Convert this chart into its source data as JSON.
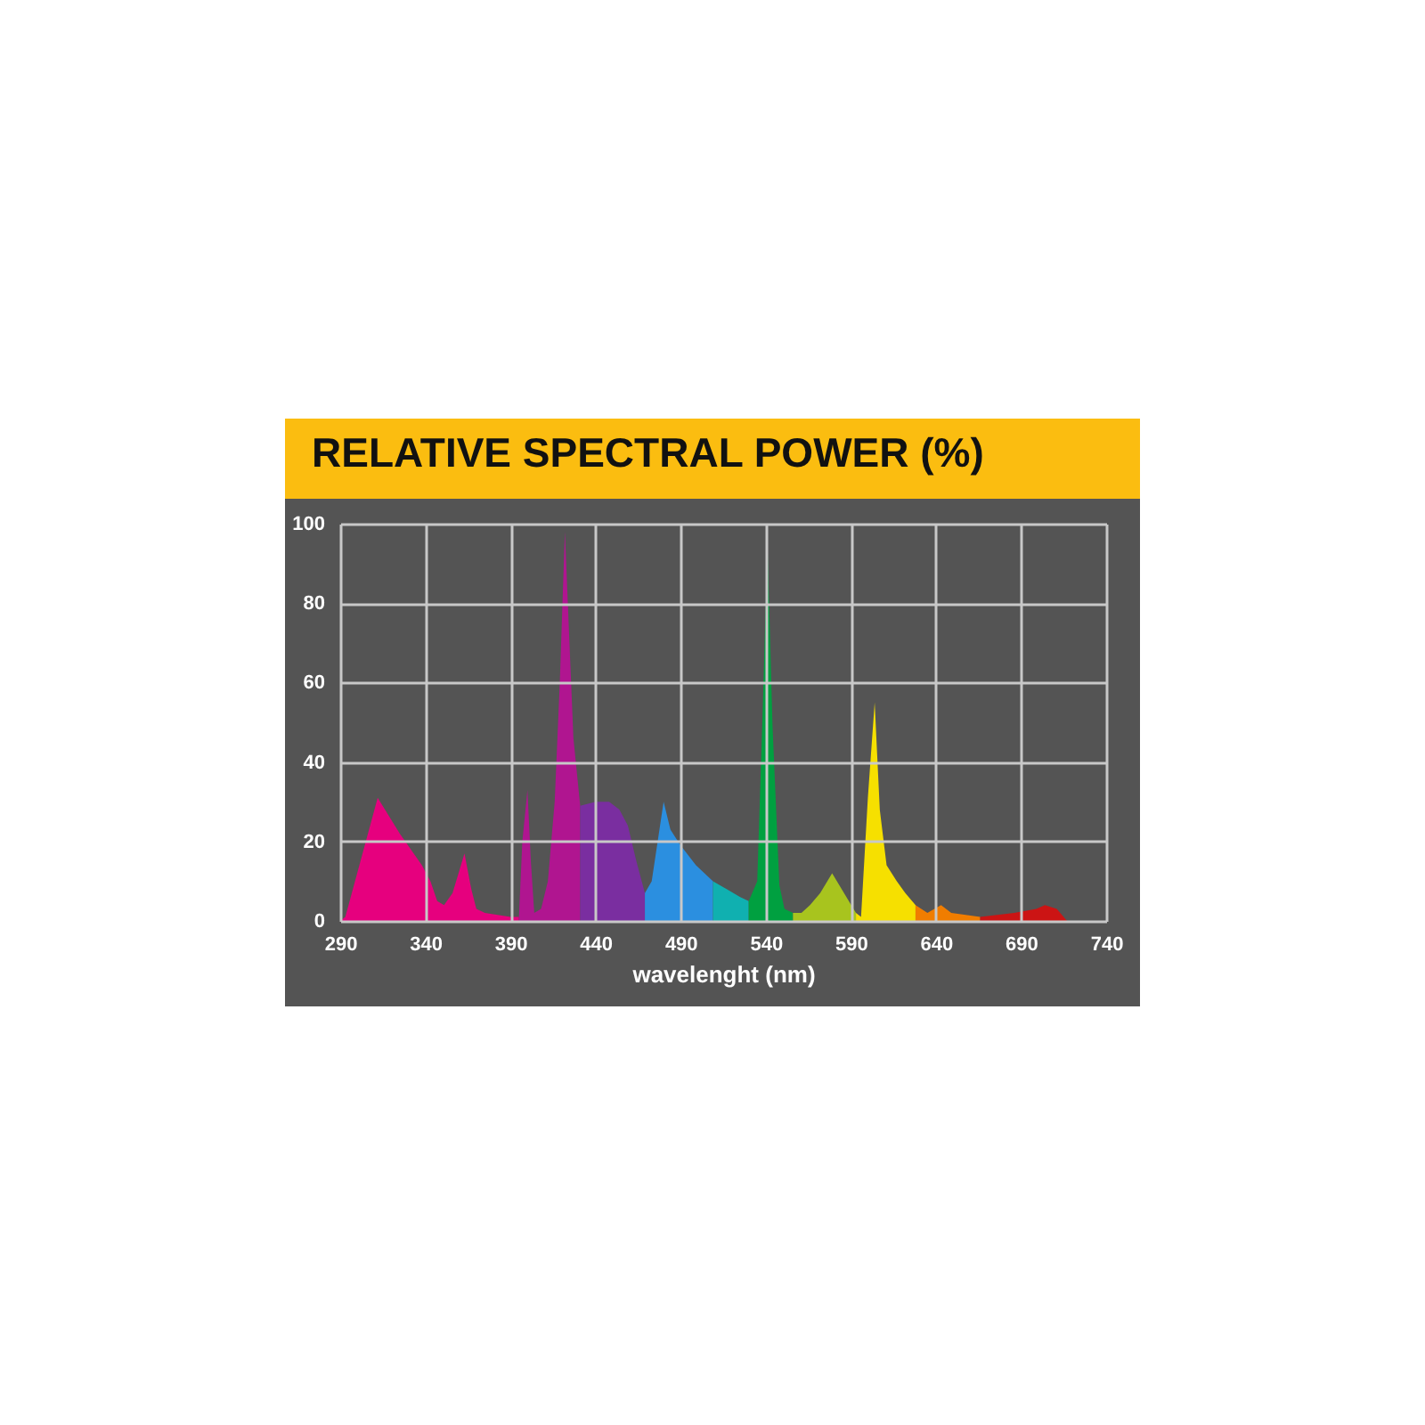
{
  "chart_data": {
    "type": "area",
    "title": "RELATIVE SPECTRAL POWER (%)",
    "xlabel": "wavelenght (nm)",
    "xlim": [
      290,
      740
    ],
    "ylim": [
      0,
      100
    ],
    "xticks": [
      290,
      340,
      390,
      440,
      490,
      540,
      590,
      640,
      690,
      740
    ],
    "yticks": [
      0,
      20,
      40,
      60,
      80,
      100
    ],
    "grid": true,
    "series": [
      {
        "color": "#e6007e",
        "x": [
          290,
          293,
          312,
          325,
          338,
          343,
          347,
          351,
          356,
          363,
          367,
          370,
          375,
          390,
          395
        ],
        "values": [
          0,
          1,
          31,
          22,
          14,
          10,
          5,
          4,
          7,
          17,
          8,
          3,
          2,
          1,
          1
        ]
      },
      {
        "color": "#b01590",
        "x": [
          395,
          397,
          400,
          402,
          404,
          408,
          412,
          416,
          419,
          422,
          427,
          431
        ],
        "values": [
          1,
          20,
          33,
          15,
          2,
          3,
          10,
          30,
          60,
          98,
          46,
          29
        ]
      },
      {
        "color": "#7a2ea0",
        "x": [
          431,
          440,
          448,
          454,
          459,
          464,
          469
        ],
        "values": [
          29,
          30,
          30,
          28,
          24,
          15,
          7
        ]
      },
      {
        "color": "#2b8fe0",
        "x": [
          469,
          473,
          480,
          484,
          490,
          499,
          509
        ],
        "values": [
          7,
          10,
          30,
          23,
          19,
          14,
          10
        ]
      },
      {
        "color": "#10b0b0",
        "x": [
          509,
          517,
          525,
          530
        ],
        "values": [
          10,
          8,
          6,
          5
        ]
      },
      {
        "color": "#00a040",
        "x": [
          530,
          535,
          538,
          541,
          544,
          548,
          551,
          556
        ],
        "values": [
          5,
          10,
          50,
          95,
          49,
          9,
          3,
          2
        ]
      },
      {
        "color": "#a8c41e",
        "x": [
          556,
          561,
          566,
          572,
          579,
          586,
          593
        ],
        "values": [
          2,
          2,
          4,
          7,
          12,
          7,
          2
        ]
      },
      {
        "color": "#f6e000",
        "x": [
          593,
          596,
          600,
          604,
          607,
          611,
          617,
          622,
          628
        ],
        "values": [
          2,
          1,
          31,
          55,
          28,
          14,
          10,
          7,
          4
        ]
      },
      {
        "color": "#f07d00",
        "x": [
          628,
          635,
          643,
          649,
          666
        ],
        "values": [
          4,
          2,
          4,
          2,
          1
        ]
      },
      {
        "color": "#cc1414",
        "x": [
          666,
          686,
          699,
          704,
          711,
          717
        ],
        "values": [
          1,
          2,
          3,
          4,
          3,
          0
        ]
      }
    ]
  }
}
